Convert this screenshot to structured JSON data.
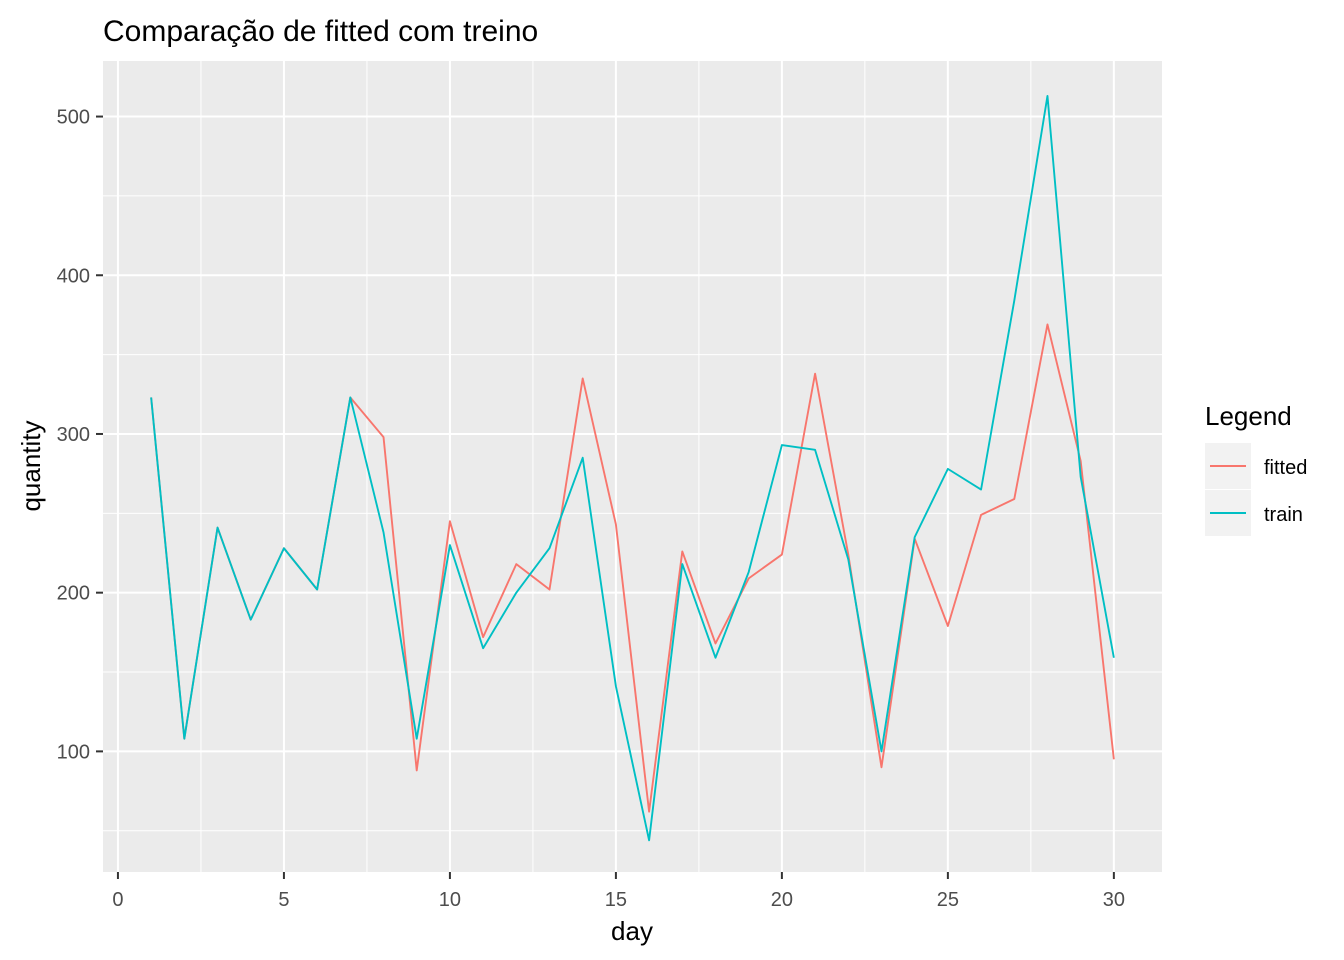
{
  "chart_data": {
    "type": "line",
    "title": "Comparação de fitted com treino",
    "xlabel": "day",
    "ylabel": "quantity",
    "xlim": [
      -0.45,
      31.45
    ],
    "ylim": [
      24,
      535
    ],
    "x_ticks": [
      0,
      5,
      10,
      15,
      20,
      25,
      30
    ],
    "x_tick_labels": [
      "0",
      "5",
      "10",
      "15",
      "20",
      "25",
      "30"
    ],
    "y_ticks": [
      100,
      200,
      300,
      400,
      500
    ],
    "y_tick_labels": [
      "100",
      "200",
      "300",
      "400",
      "500"
    ],
    "grid": true,
    "legend": {
      "title": "Legend",
      "position": "right"
    },
    "series": [
      {
        "name": "fitted",
        "color": "#F8766D",
        "x": [
          1,
          2,
          3,
          4,
          5,
          6,
          7,
          8,
          9,
          10,
          11,
          12,
          13,
          14,
          15,
          16,
          17,
          18,
          19,
          20,
          21,
          22,
          23,
          24,
          25,
          26,
          27,
          28,
          29,
          30
        ],
        "values": [
          323,
          108,
          241,
          183,
          228,
          202,
          323,
          298,
          88,
          245,
          172,
          218,
          202,
          335,
          243,
          62,
          226,
          168,
          209,
          224,
          338,
          224,
          90,
          234,
          179,
          249,
          259,
          369,
          283,
          95
        ]
      },
      {
        "name": "train",
        "color": "#00BFC4",
        "x": [
          1,
          2,
          3,
          4,
          5,
          6,
          7,
          8,
          9,
          10,
          11,
          12,
          13,
          14,
          15,
          16,
          17,
          18,
          19,
          20,
          21,
          22,
          23,
          24,
          25,
          26,
          27,
          28,
          29,
          30
        ],
        "values": [
          323,
          108,
          241,
          183,
          228,
          202,
          323,
          238,
          108,
          230,
          165,
          200,
          228,
          285,
          141,
          44,
          218,
          159,
          213,
          293,
          290,
          221,
          100,
          235,
          278,
          265,
          384,
          513,
          273,
          159
        ]
      }
    ]
  }
}
